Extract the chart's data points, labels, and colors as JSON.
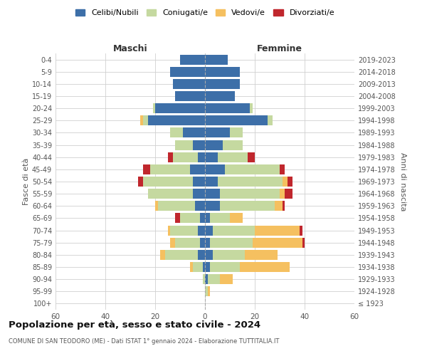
{
  "age_groups": [
    "100+",
    "95-99",
    "90-94",
    "85-89",
    "80-84",
    "75-79",
    "70-74",
    "65-69",
    "60-64",
    "55-59",
    "50-54",
    "45-49",
    "40-44",
    "35-39",
    "30-34",
    "25-29",
    "20-24",
    "15-19",
    "10-14",
    "5-9",
    "0-4"
  ],
  "birth_years": [
    "≤ 1923",
    "1924-1928",
    "1929-1933",
    "1934-1938",
    "1939-1943",
    "1944-1948",
    "1949-1953",
    "1954-1958",
    "1959-1963",
    "1964-1968",
    "1969-1973",
    "1974-1978",
    "1979-1983",
    "1984-1988",
    "1989-1993",
    "1994-1998",
    "1999-2003",
    "2004-2008",
    "2009-2013",
    "2014-2018",
    "2019-2023"
  ],
  "maschi_celibe": [
    0,
    0,
    0,
    1,
    3,
    2,
    3,
    2,
    4,
    5,
    5,
    6,
    3,
    5,
    9,
    23,
    20,
    12,
    13,
    14,
    10
  ],
  "maschi_coniugato": [
    0,
    0,
    1,
    4,
    13,
    10,
    11,
    8,
    15,
    18,
    20,
    16,
    10,
    7,
    5,
    2,
    1,
    0,
    0,
    0,
    0
  ],
  "maschi_vedovo": [
    0,
    0,
    0,
    1,
    2,
    2,
    1,
    0,
    1,
    0,
    0,
    0,
    0,
    0,
    0,
    1,
    0,
    0,
    0,
    0,
    0
  ],
  "maschi_divorziato": [
    0,
    0,
    0,
    0,
    0,
    0,
    0,
    2,
    0,
    0,
    2,
    3,
    2,
    0,
    0,
    0,
    0,
    0,
    0,
    0,
    0
  ],
  "femmine_celibe": [
    0,
    0,
    1,
    2,
    3,
    2,
    3,
    2,
    6,
    6,
    5,
    8,
    5,
    7,
    10,
    25,
    18,
    12,
    14,
    14,
    9
  ],
  "femmine_coniugato": [
    0,
    1,
    5,
    12,
    13,
    17,
    17,
    8,
    22,
    24,
    26,
    22,
    12,
    8,
    5,
    2,
    1,
    0,
    0,
    0,
    0
  ],
  "femmine_vedovo": [
    0,
    1,
    5,
    20,
    13,
    20,
    18,
    5,
    3,
    2,
    2,
    0,
    0,
    0,
    0,
    0,
    0,
    0,
    0,
    0,
    0
  ],
  "femmine_divorziato": [
    0,
    0,
    0,
    0,
    0,
    1,
    1,
    0,
    1,
    3,
    2,
    2,
    3,
    0,
    0,
    0,
    0,
    0,
    0,
    0,
    0
  ],
  "colors": {
    "celibe": "#3d6fa8",
    "coniugato": "#c5d9a0",
    "vedovo": "#f5c060",
    "divorziato": "#c0272d"
  },
  "title": "Popolazione per età, sesso e stato civile - 2024",
  "subtitle": "COMUNE DI SAN TEODORO (ME) - Dati ISTAT 1° gennaio 2024 - Elaborazione TUTTITALIA.IT",
  "xlabel_left": "Maschi",
  "xlabel_right": "Femmine",
  "ylabel_left": "Fasce di età",
  "ylabel_right": "Anni di nascita",
  "xlim": 60,
  "legend_labels": [
    "Celibi/Nubili",
    "Coniugati/e",
    "Vedovi/e",
    "Divorziati/e"
  ],
  "background_color": "#ffffff",
  "grid_color": "#d0d0d0",
  "label_color": "#555555",
  "title_color": "#111111",
  "header_color": "#333333"
}
